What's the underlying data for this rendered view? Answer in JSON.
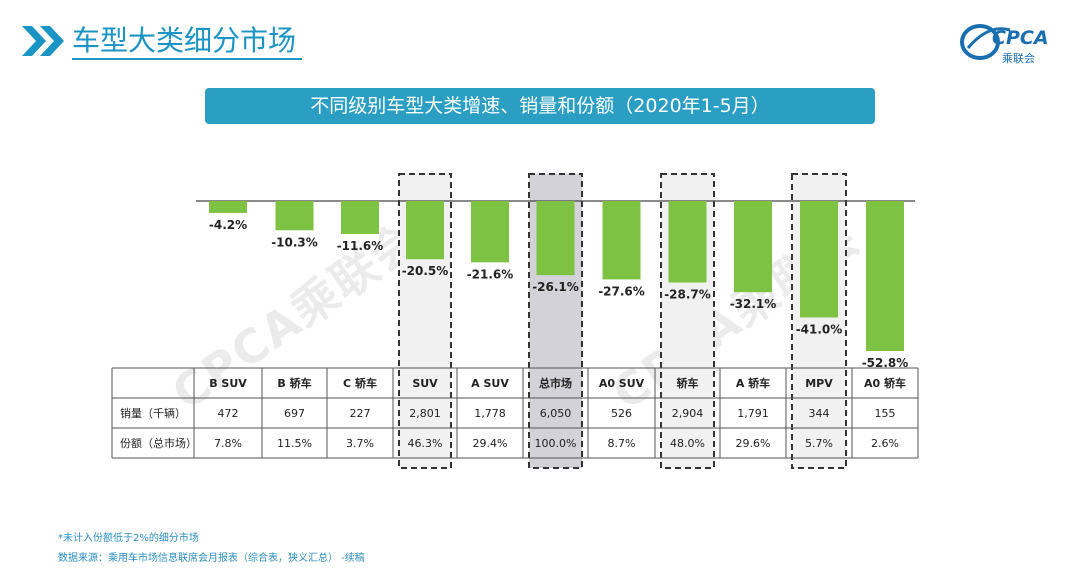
{
  "header": {
    "title": "车型大类细分市场",
    "logo_text": "CPCA",
    "logo_sub": "乘联会",
    "icon": "chevron-double-right-icon"
  },
  "banner": {
    "text": "不同级别车型大类增速、销量和份额（2020年1-5月）"
  },
  "watermarks": [
    "CPCA乘联会",
    "CPCA乘联会"
  ],
  "chart_data": {
    "type": "bar",
    "categories": [
      "B SUV",
      "B 轿车",
      "C 轿车",
      "SUV",
      "A SUV",
      "总市场",
      "A0 SUV",
      "轿车",
      "A 轿车",
      "MPV",
      "A0 轿车"
    ],
    "values": [
      -4.2,
      -10.3,
      -11.6,
      -20.5,
      -21.6,
      -26.1,
      -27.6,
      -28.7,
      -32.1,
      -41.0,
      -52.8
    ],
    "value_labels": [
      "-4.2%",
      "-10.3%",
      "-11.6%",
      "-20.5%",
      "-21.6%",
      "-26.1%",
      "-27.6%",
      "-28.7%",
      "-32.1%",
      "-41.0%",
      "-52.8%"
    ],
    "ylim": [
      -60,
      0
    ],
    "bar_color": "#7dc242",
    "highlighted": [
      "SUV",
      "总市场",
      "轿车",
      "MPV"
    ],
    "table": {
      "rows": [
        {
          "label": "销量（千辆）",
          "values": [
            "472",
            "697",
            "227",
            "2,801",
            "1,778",
            "6,050",
            "526",
            "2,904",
            "1,791",
            "344",
            "155"
          ]
        },
        {
          "label": "份额（总市场）",
          "values": [
            "7.8%",
            "11.5%",
            "3.7%",
            "46.3%",
            "29.4%",
            "100.0%",
            "8.7%",
            "48.0%",
            "29.6%",
            "5.7%",
            "2.6%"
          ]
        }
      ]
    }
  },
  "footnotes": {
    "note": "*未计入份额低于2%的细分市场",
    "source": "数据来源：乘用车市场信息联席会月报表（综合表，狭义汇总） -续稿"
  }
}
